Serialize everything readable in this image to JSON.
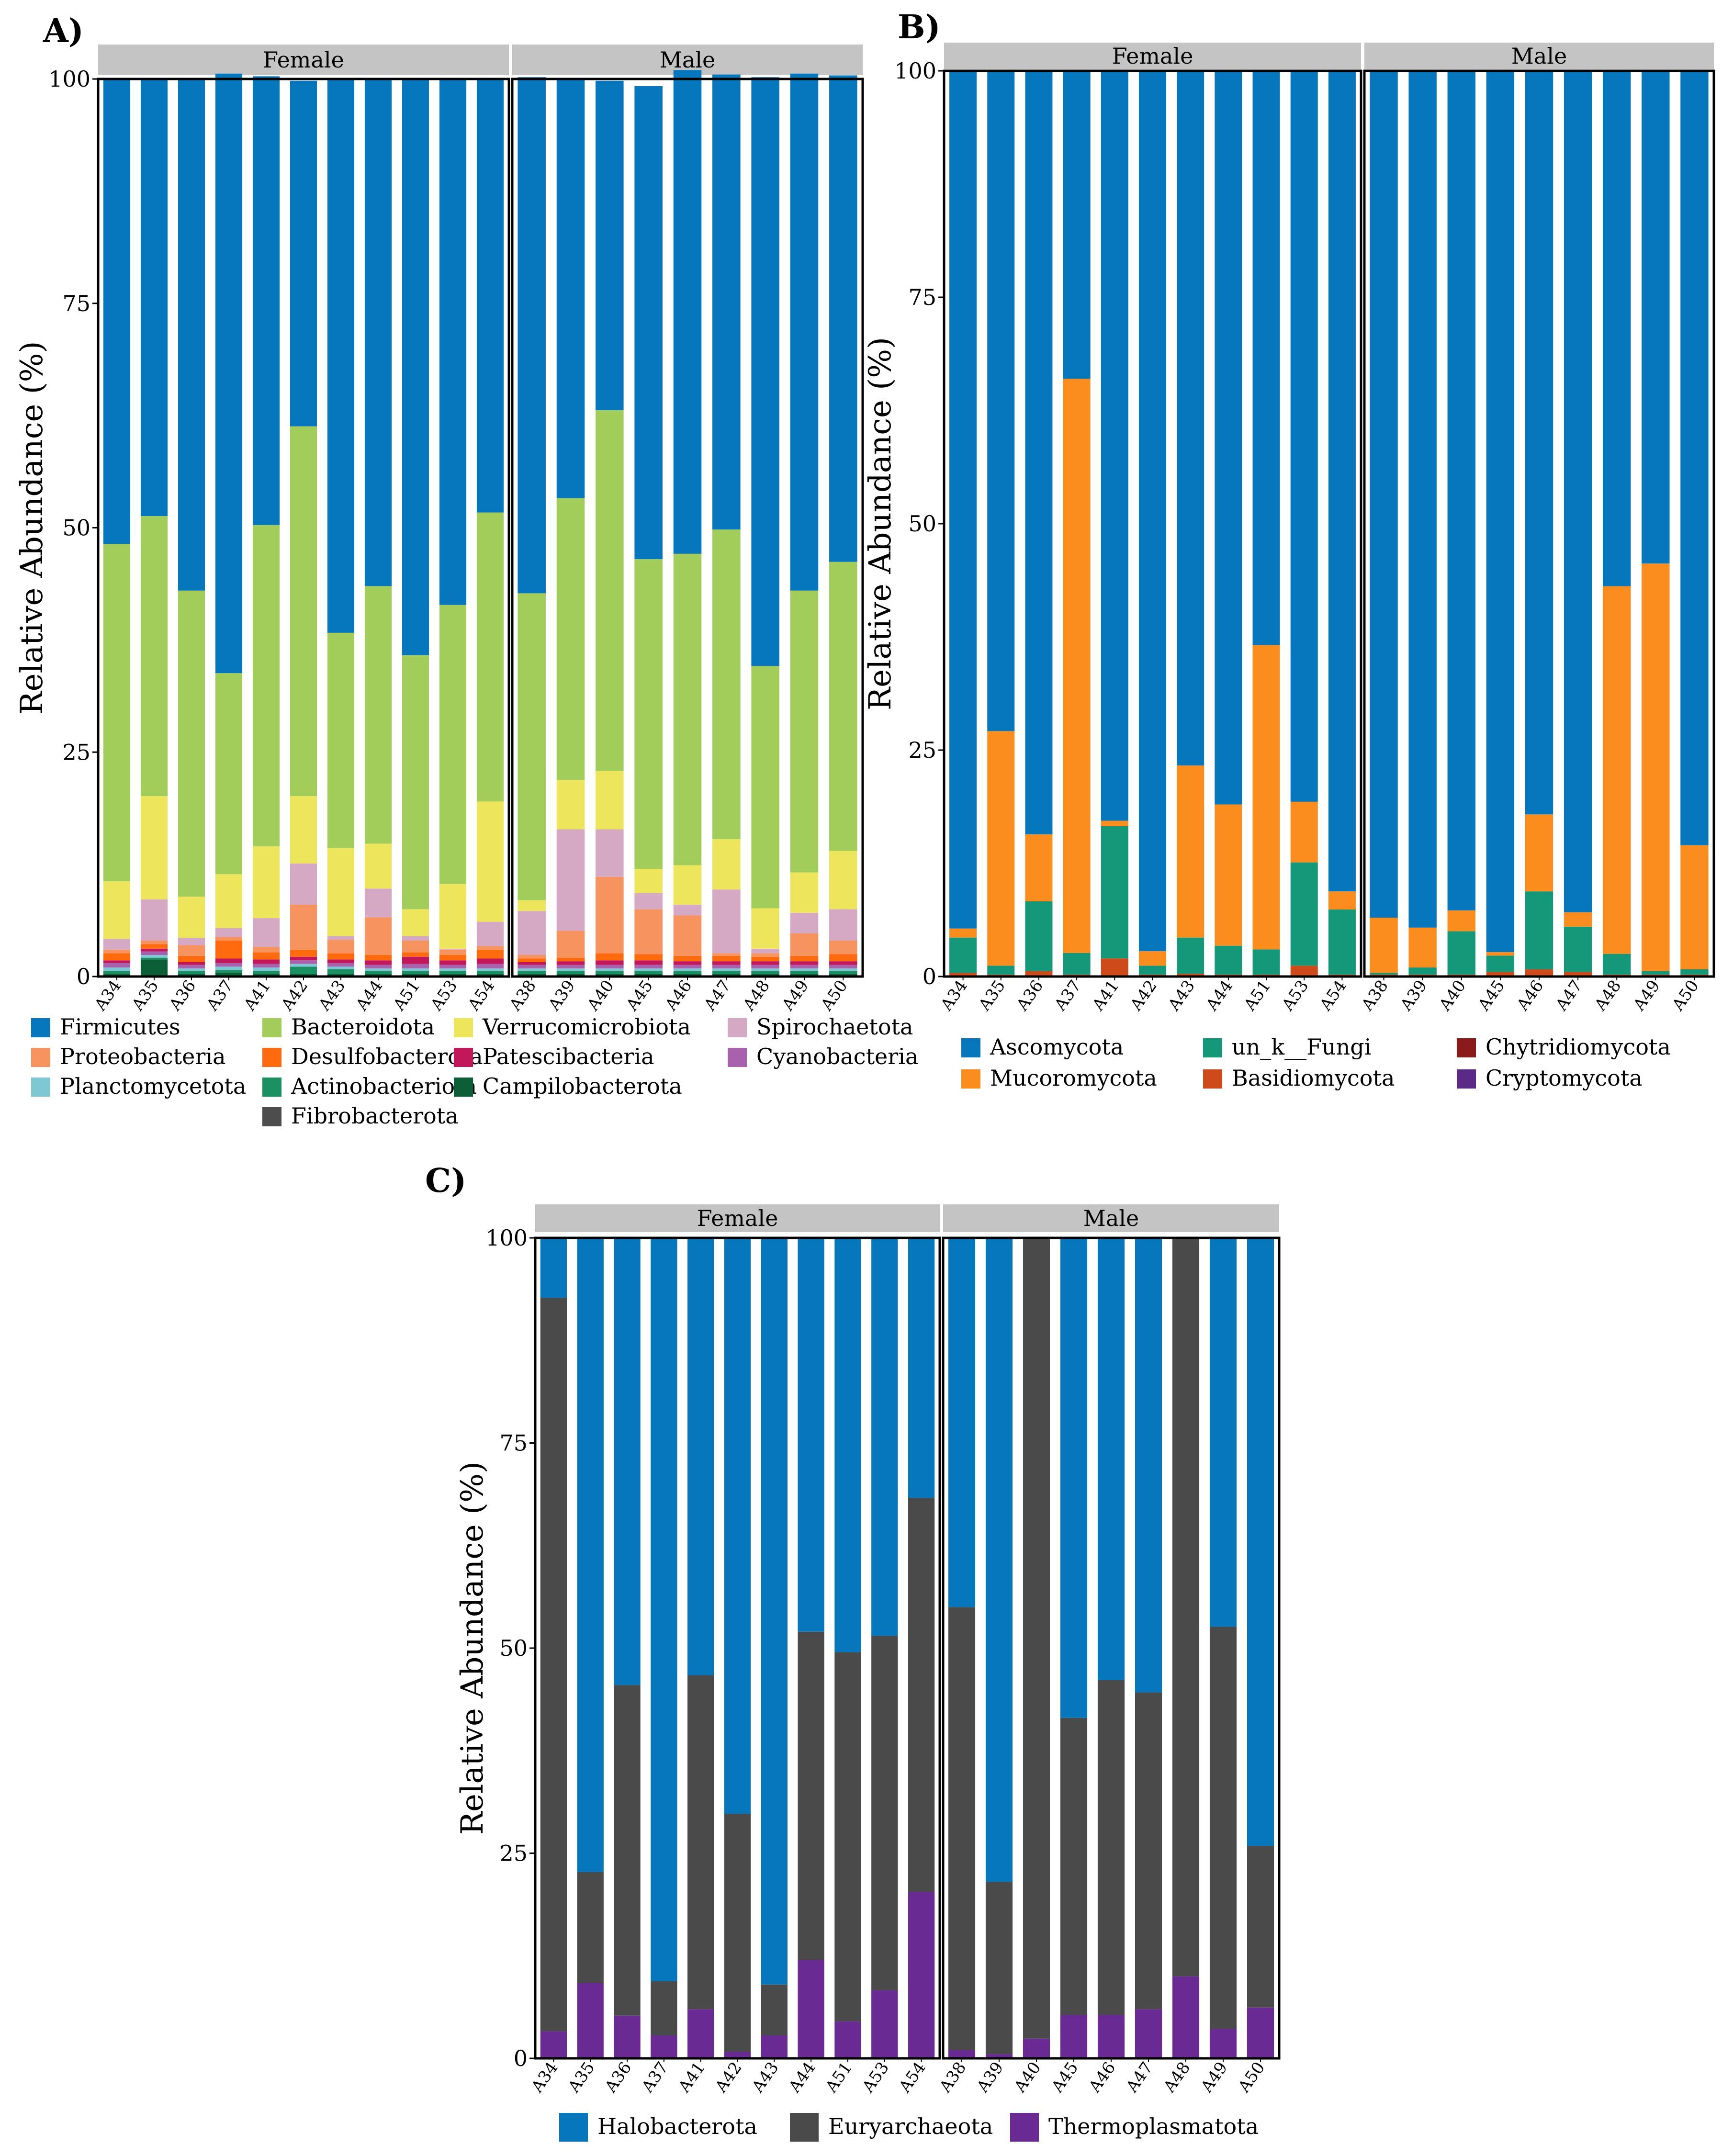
{
  "chart_data": [
    {
      "id": "A",
      "panel_label": "A)",
      "type": "bar",
      "stacked": true,
      "ylabel": "Relative Abundance (%)",
      "ylim": [
        0,
        100
      ],
      "yticks": [
        "0",
        "25",
        "50",
        "75",
        "100"
      ],
      "facets": [
        {
          "name": "Female",
          "categories": [
            "A34",
            "A35",
            "A36",
            "A37",
            "A41",
            "A42",
            "A43",
            "A44",
            "A51",
            "A53",
            "A54"
          ]
        },
        {
          "name": "Male",
          "categories": [
            "A38",
            "A39",
            "A40",
            "A45",
            "A46",
            "A47",
            "A48",
            "A49",
            "A50"
          ]
        }
      ],
      "series": [
        {
          "name": "Fibrobacterota",
          "color": "#4d4d4d",
          "values": [
            0.1,
            0.1,
            0.1,
            0.1,
            0.1,
            0.1,
            0.1,
            0.1,
            0.1,
            0.1,
            0.1,
            0.1,
            0.1,
            0.1,
            0.1,
            0.1,
            0.1,
            0.1,
            0.1,
            0.1
          ]
        },
        {
          "name": "Campilobacterota",
          "color": "#0b5e35",
          "values": [
            0.2,
            1.8,
            0.2,
            0.3,
            0.2,
            0.2,
            0.2,
            0.2,
            0.2,
            0.2,
            0.2,
            0.2,
            0.2,
            0.2,
            0.2,
            0.2,
            0.2,
            0.2,
            0.2,
            0.2
          ]
        },
        {
          "name": "Actinobacteriota",
          "color": "#1b9163",
          "values": [
            0.3,
            0.2,
            0.3,
            0.3,
            0.3,
            0.8,
            0.5,
            0.3,
            0.3,
            0.3,
            0.3,
            0.3,
            0.3,
            0.3,
            0.3,
            0.3,
            0.3,
            0.3,
            0.3,
            0.3
          ]
        },
        {
          "name": "Planctomycetota",
          "color": "#7ec8d3",
          "values": [
            0.4,
            0.3,
            0.3,
            0.4,
            0.4,
            0.3,
            0.3,
            0.3,
            0.3,
            0.3,
            0.3,
            0.3,
            0.3,
            0.3,
            0.3,
            0.3,
            0.3,
            0.3,
            0.3,
            0.3
          ]
        },
        {
          "name": "Cyanobacteria",
          "color": "#a862ad",
          "values": [
            0.5,
            0.4,
            0.4,
            0.4,
            0.4,
            0.4,
            0.4,
            0.4,
            0.5,
            0.4,
            0.5,
            0.4,
            0.4,
            0.4,
            0.4,
            0.4,
            0.4,
            0.4,
            0.4,
            0.4
          ]
        },
        {
          "name": "Patescibacteria",
          "color": "#c2185b",
          "values": [
            0.3,
            0.3,
            0.3,
            0.5,
            0.5,
            0.4,
            0.4,
            0.5,
            0.8,
            0.5,
            0.6,
            0.3,
            0.4,
            0.5,
            0.5,
            0.4,
            0.4,
            0.4,
            0.4,
            0.4
          ]
        },
        {
          "name": "Desulfobacterota",
          "color": "#ff6a0f",
          "values": [
            0.8,
            0.5,
            0.7,
            2.0,
            0.8,
            0.8,
            0.7,
            0.6,
            0.5,
            0.6,
            1.0,
            0.4,
            0.4,
            0.8,
            0.7,
            0.6,
            0.6,
            0.5,
            0.6,
            0.8
          ]
        },
        {
          "name": "Proteobacteria",
          "color": "#f6935f",
          "values": [
            0.4,
            0.4,
            1.2,
            0.4,
            0.6,
            5.0,
            1.5,
            4.2,
            1.3,
            0.6,
            0.4,
            0.4,
            3.0,
            8.5,
            5.0,
            4.5,
            0.3,
            0.4,
            2.5,
            1.5
          ]
        },
        {
          "name": "Spirochaetota",
          "color": "#d5a9c4",
          "values": [
            1.2,
            4.6,
            0.8,
            1.0,
            3.2,
            4.6,
            0.4,
            3.2,
            0.5,
            0.1,
            2.7,
            4.9,
            11.3,
            5.3,
            1.8,
            1.2,
            7.1,
            0.5,
            2.3,
            3.5
          ]
        },
        {
          "name": "Verrucomicrobiota",
          "color": "#ede55b",
          "values": [
            6.4,
            11.5,
            4.6,
            6.0,
            8.0,
            7.5,
            9.8,
            5.0,
            3.0,
            7.2,
            13.4,
            1.2,
            5.5,
            6.5,
            2.7,
            4.4,
            5.6,
            4.5,
            4.5,
            6.5
          ]
        },
        {
          "name": "Bacteroidota",
          "color": "#a3cd5b",
          "values": [
            37.6,
            31.2,
            34.1,
            22.4,
            35.8,
            41.2,
            24.0,
            28.7,
            28.3,
            31.1,
            32.2,
            34.2,
            31.4,
            40.2,
            34.5,
            34.7,
            34.5,
            27.0,
            31.4,
            32.2
          ]
        },
        {
          "name": "Firmicutes",
          "color": "#0777bd",
          "values": [
            51.8,
            48.7,
            57.0,
            66.8,
            50.0,
            38.5,
            61.7,
            56.4,
            64.1,
            58.7,
            48.2,
            57.5,
            46.7,
            36.7,
            52.7,
            53.9,
            50.7,
            65.6,
            57.6,
            54.2
          ]
        }
      ],
      "legend": {
        "columns": [
          [
            "Firmicutes",
            "Proteobacteria",
            "Planctomycetota"
          ],
          [
            "Bacteroidota",
            "Desulfobacterota",
            "Actinobacteriota",
            "Fibrobacterota"
          ],
          [
            "Verrucomicrobiota",
            "Patescibacteria",
            "Campilobacterota"
          ],
          [
            "Spirochaetota",
            "Cyanobacteria"
          ]
        ]
      }
    },
    {
      "id": "B",
      "panel_label": "B)",
      "type": "bar",
      "stacked": true,
      "ylabel": "Relative Abundance (%)",
      "ylim": [
        0,
        100
      ],
      "yticks": [
        "0",
        "25",
        "50",
        "75",
        "100"
      ],
      "facets": [
        {
          "name": "Female",
          "categories": [
            "A34",
            "A35",
            "A36",
            "A37",
            "A41",
            "A42",
            "A43",
            "A44",
            "A51",
            "A53",
            "A54"
          ]
        },
        {
          "name": "Male",
          "categories": [
            "A38",
            "A39",
            "A40",
            "A45",
            "A46",
            "A47",
            "A48",
            "A49",
            "A50"
          ]
        }
      ],
      "series": [
        {
          "name": "Cryptomycota",
          "color": "#5b2a86",
          "values": [
            0,
            0,
            0,
            0,
            0,
            0,
            0,
            0,
            0,
            0,
            0,
            0,
            0,
            0,
            0,
            0,
            0,
            0,
            0,
            0
          ]
        },
        {
          "name": "Chytridiomycota",
          "color": "#8b1a1a",
          "values": [
            0,
            0,
            0,
            0,
            0,
            0,
            0,
            0,
            0,
            0,
            0,
            0,
            0,
            0,
            0,
            0,
            0,
            0,
            0,
            0
          ]
        },
        {
          "name": "Basidiomycota",
          "color": "#cf4a1b",
          "values": [
            0.4,
            0.2,
            0.6,
            0.2,
            2.0,
            0.2,
            0.3,
            0.2,
            0.2,
            1.2,
            0.2,
            0.2,
            0.2,
            0.2,
            0.5,
            0.8,
            0.5,
            0.2,
            0.2,
            0.2
          ]
        },
        {
          "name": "un_k__Fungi",
          "color": "#15987a",
          "values": [
            3.9,
            1.0,
            7.7,
            2.4,
            14.6,
            1.0,
            4.0,
            3.2,
            2.8,
            11.4,
            7.2,
            0.2,
            0.8,
            4.8,
            1.8,
            8.6,
            5.0,
            2.3,
            0.4,
            0.6
          ]
        },
        {
          "name": "Mucoromycota",
          "color": "#fb8c1e",
          "values": [
            1.0,
            25.9,
            7.4,
            63.4,
            0.6,
            1.6,
            19.0,
            15.6,
            33.6,
            6.7,
            2.0,
            6.1,
            4.4,
            2.3,
            0.4,
            8.5,
            1.6,
            40.6,
            45.0,
            13.7
          ]
        },
        {
          "name": "Ascomycota",
          "color": "#0777bd",
          "values": [
            94.7,
            72.9,
            84.3,
            34.0,
            82.8,
            97.2,
            76.7,
            81.0,
            63.4,
            80.7,
            90.6,
            93.5,
            94.6,
            92.7,
            97.3,
            82.1,
            92.9,
            56.9,
            54.4,
            85.5
          ]
        }
      ],
      "legend": {
        "columns": [
          [
            "Ascomycota",
            "Mucoromycota"
          ],
          [
            "un_k__Fungi",
            "Basidiomycota"
          ],
          [
            "Chytridiomycota",
            "Cryptomycota"
          ]
        ]
      }
    },
    {
      "id": "C",
      "panel_label": "C)",
      "type": "bar",
      "stacked": true,
      "ylabel": "Relative Abundance (%)",
      "ylim": [
        0,
        100
      ],
      "yticks": [
        "0",
        "25",
        "50",
        "75",
        "100"
      ],
      "facets": [
        {
          "name": "Female",
          "categories": [
            "A34",
            "A35",
            "A36",
            "A37",
            "A41",
            "A42",
            "A43",
            "A44",
            "A51",
            "A53",
            "A54"
          ]
        },
        {
          "name": "Male",
          "categories": [
            "A38",
            "A39",
            "A40",
            "A45",
            "A46",
            "A47",
            "A48",
            "A49",
            "A50"
          ]
        }
      ],
      "series": [
        {
          "name": "Thermoplasmatota",
          "color": "#6a2a93",
          "values": [
            3.3,
            9.2,
            5.2,
            2.8,
            6.0,
            0.8,
            2.8,
            12.0,
            4.5,
            8.3,
            20.3,
            1.0,
            0.5,
            2.4,
            5.3,
            5.3,
            6.0,
            10.0,
            3.6,
            6.2
          ]
        },
        {
          "name": "Euryarchaeota",
          "color": "#4a4a4a",
          "values": [
            89.4,
            13.5,
            40.3,
            6.6,
            40.7,
            29.0,
            6.2,
            40.0,
            45.0,
            43.2,
            48.0,
            54.0,
            21.0,
            97.6,
            36.2,
            40.8,
            38.6,
            90.0,
            49.0,
            19.7
          ]
        },
        {
          "name": "Halobacterota",
          "color": "#0777bd",
          "values": [
            7.3,
            77.3,
            54.5,
            90.6,
            53.3,
            70.2,
            91.0,
            48.0,
            50.5,
            48.5,
            31.7,
            45.0,
            78.5,
            0.0,
            58.5,
            53.9,
            55.4,
            0.0,
            47.4,
            74.1
          ]
        }
      ],
      "legend": {
        "columns": [
          [
            "Halobacterota"
          ],
          [
            "Euryarchaeota"
          ],
          [
            "Thermoplasmatota"
          ]
        ]
      }
    }
  ]
}
